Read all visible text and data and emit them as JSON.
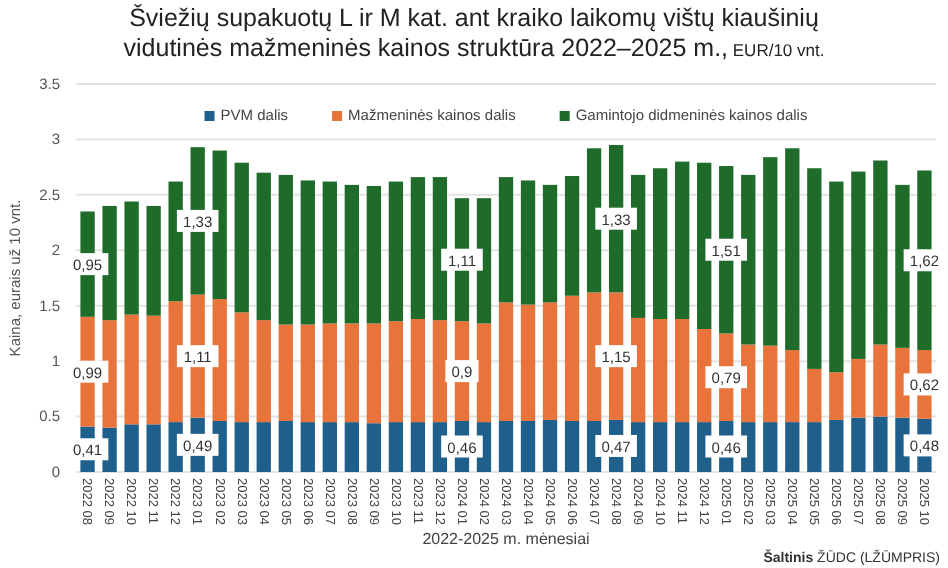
{
  "chart_data": {
    "type": "bar",
    "stacked": true,
    "title": "Šviežių supakuotų L ir M kat. ant kraiko laikomų vištų kiaušinių vidutinės mažmeninės kainos struktūra 2022–2025 m.,",
    "subtitle": "EUR/10 vnt.",
    "xlabel": "2022-2025 m. mėnesiai",
    "ylabel": "Kaina, eurais už 10 vnt.",
    "annotations": [
      "Šaltinis ŽŪDC (LŽŪMPRIS)"
    ],
    "categories": [
      "2022 08",
      "2022 09",
      "2022 10",
      "2022 11",
      "2022 12",
      "2023 01",
      "2023 02",
      "2023 03",
      "2023 04",
      "2023 05",
      "2023 06",
      "2023 07",
      "2023 08",
      "2023 09",
      "2023 10",
      "2023 11",
      "2023 12",
      "2024 01",
      "2024 02",
      "2024 03",
      "2024 04",
      "2024 05",
      "2024 06",
      "2024 07",
      "2024 08",
      "2024 09",
      "2024 10",
      "2024 11",
      "2024 12",
      "2025 01",
      "2025 02",
      "2025 03",
      "2025 04",
      "2025 05",
      "2025 06",
      "2025 07",
      "2025 08",
      "2025 09",
      "2025 10"
    ],
    "series": [
      {
        "name": "PVM dalis",
        "color": "#1f5f8b",
        "values": [
          0.41,
          0.4,
          0.43,
          0.43,
          0.45,
          0.49,
          0.46,
          0.45,
          0.45,
          0.46,
          0.45,
          0.45,
          0.45,
          0.44,
          0.45,
          0.45,
          0.45,
          0.46,
          0.45,
          0.46,
          0.46,
          0.47,
          0.46,
          0.46,
          0.47,
          0.45,
          0.45,
          0.45,
          0.45,
          0.46,
          0.45,
          0.45,
          0.45,
          0.45,
          0.47,
          0.49,
          0.5,
          0.49,
          0.48
        ],
        "value_labels": [
          "0,41",
          null,
          null,
          null,
          null,
          "0,49",
          null,
          null,
          null,
          null,
          null,
          null,
          null,
          null,
          null,
          null,
          null,
          "0,46",
          null,
          null,
          null,
          null,
          null,
          null,
          "0,47",
          null,
          null,
          null,
          null,
          "0,46",
          null,
          null,
          null,
          null,
          null,
          null,
          null,
          null,
          "0,48"
        ]
      },
      {
        "name": "Mažmeninės kainos dalis",
        "color": "#e8743b",
        "values": [
          0.99,
          0.97,
          0.99,
          0.98,
          1.09,
          1.11,
          1.1,
          0.99,
          0.92,
          0.87,
          0.88,
          0.89,
          0.89,
          0.9,
          0.91,
          0.93,
          0.92,
          0.9,
          0.89,
          1.07,
          1.05,
          1.06,
          1.13,
          1.16,
          1.15,
          0.94,
          0.93,
          0.93,
          0.84,
          0.79,
          0.7,
          0.69,
          0.65,
          0.48,
          0.43,
          0.53,
          0.65,
          0.63,
          0.62
        ],
        "value_labels": [
          "0,99",
          null,
          null,
          null,
          null,
          "1,11",
          null,
          null,
          null,
          null,
          null,
          null,
          null,
          null,
          null,
          null,
          null,
          "0,9",
          null,
          null,
          null,
          null,
          null,
          null,
          "1,15",
          null,
          null,
          null,
          null,
          "0,79",
          null,
          null,
          null,
          null,
          null,
          null,
          null,
          null,
          "0,62"
        ]
      },
      {
        "name": "Gamintojo didmeninės kainos dalis",
        "color": "#1e6b2a",
        "values": [
          0.95,
          1.03,
          1.02,
          0.99,
          1.08,
          1.33,
          1.34,
          1.35,
          1.33,
          1.35,
          1.3,
          1.28,
          1.25,
          1.24,
          1.26,
          1.28,
          1.29,
          1.11,
          1.13,
          1.13,
          1.12,
          1.06,
          1.08,
          1.3,
          1.33,
          1.29,
          1.36,
          1.42,
          1.5,
          1.51,
          1.53,
          1.7,
          1.82,
          1.81,
          1.72,
          1.69,
          1.66,
          1.47,
          1.62
        ],
        "value_labels": [
          "0,95",
          null,
          null,
          null,
          null,
          "1,33",
          null,
          null,
          null,
          null,
          null,
          null,
          null,
          null,
          null,
          null,
          null,
          "1,11",
          null,
          null,
          null,
          null,
          null,
          null,
          "1,33",
          null,
          null,
          null,
          null,
          "1,51",
          null,
          null,
          null,
          null,
          null,
          null,
          null,
          null,
          "1,62"
        ]
      }
    ],
    "ylim": [
      0,
      3.5
    ],
    "yticks": [
      0,
      0.5,
      1,
      1.5,
      2,
      2.5,
      3,
      3.5
    ],
    "grid": "y",
    "legend": "top"
  }
}
